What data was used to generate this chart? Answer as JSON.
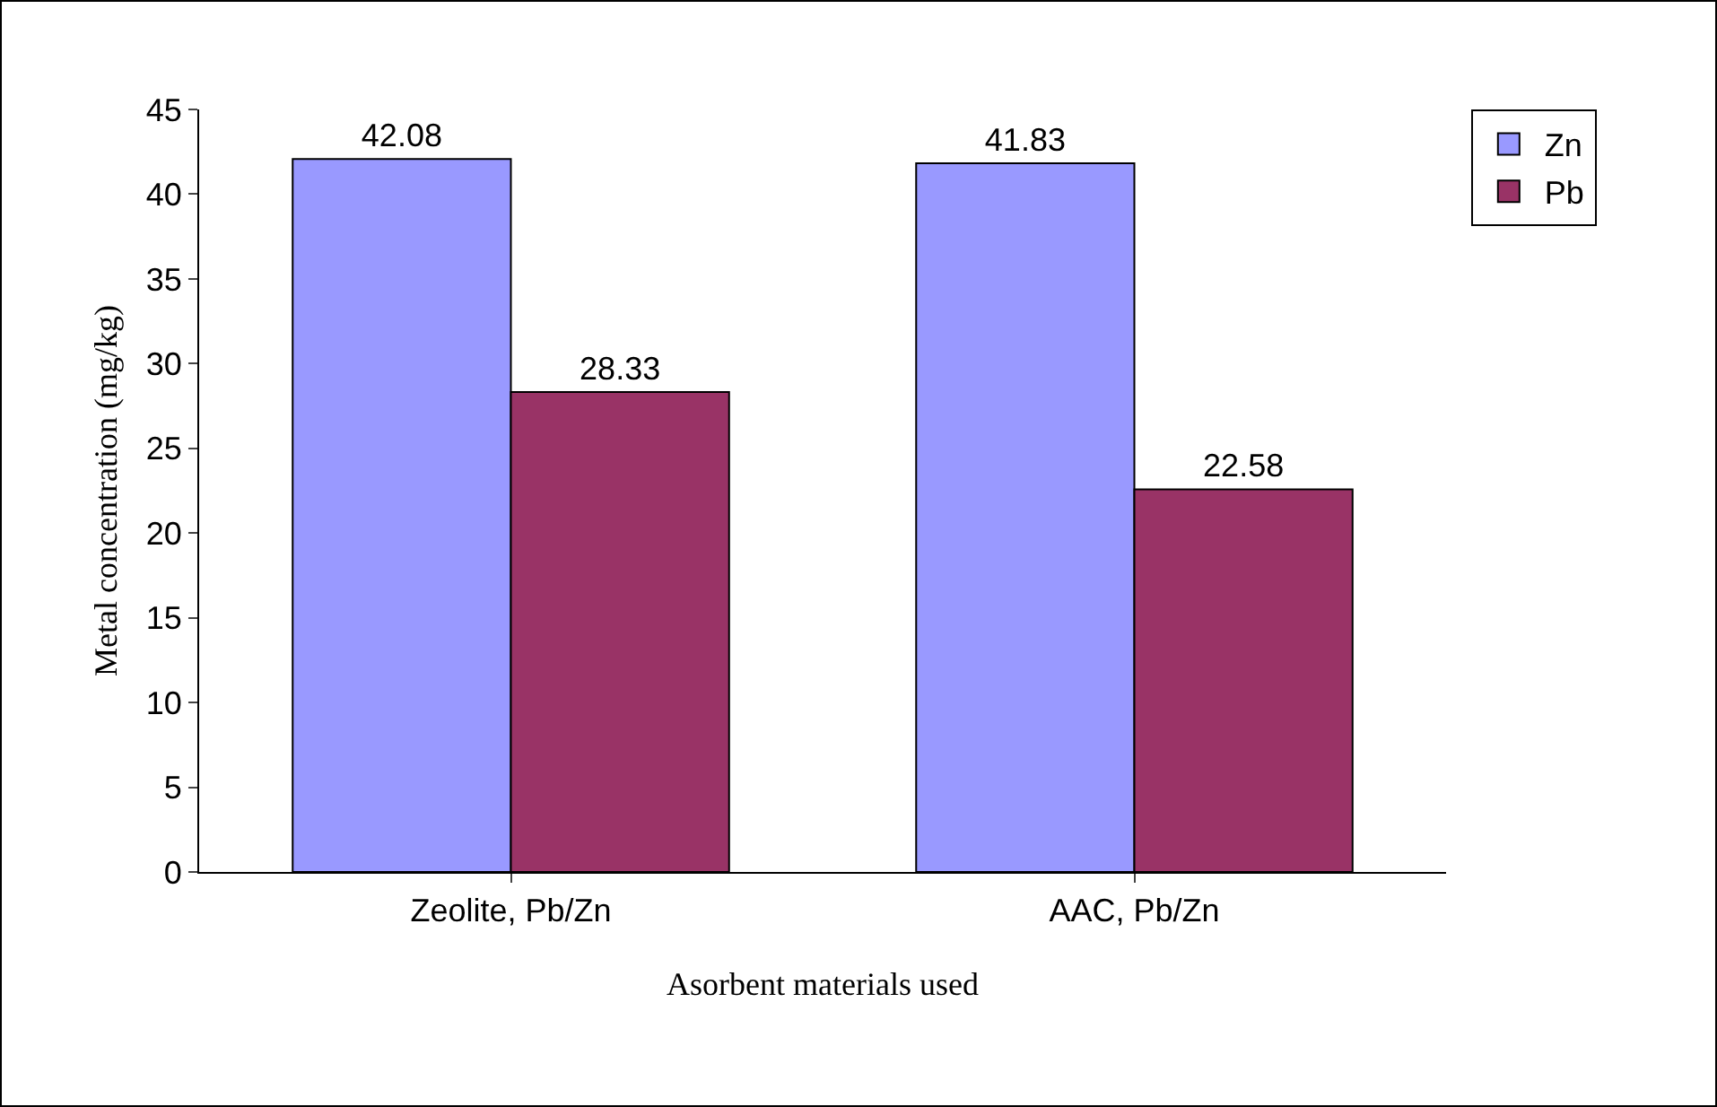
{
  "chart_data": {
    "type": "bar",
    "xlabel": "Asorbent materials used",
    "ylabel": "Metal concentration (mg/kg)",
    "categories": [
      "Zeolite, Pb/Zn",
      "AAC, Pb/Zn"
    ],
    "series": [
      {
        "name": "Zn",
        "color": "#9999ff",
        "values": [
          42.08,
          41.83
        ]
      },
      {
        "name": "Pb",
        "color": "#993366",
        "values": [
          28.33,
          22.58
        ]
      }
    ],
    "ylim": [
      0,
      45
    ],
    "yticks": [
      0,
      5,
      10,
      15,
      20,
      25,
      30,
      35,
      40,
      45
    ],
    "data_labels": true,
    "legend": "top right",
    "grid": false
  }
}
